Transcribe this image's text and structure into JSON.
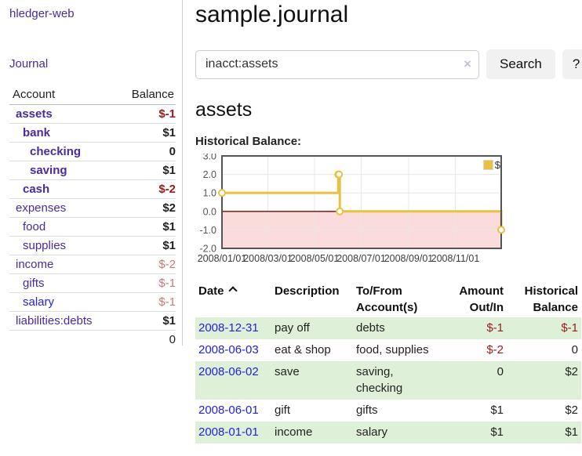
{
  "app": {
    "brand": "hledger-web",
    "nav_journal": "Journal"
  },
  "sidebar": {
    "accounts_header": {
      "account": "Account",
      "balance": "Balance"
    },
    "accounts": [
      {
        "name": "assets",
        "indent": 0,
        "bold": true,
        "balance": "$-1",
        "balance_class": "neg-strong"
      },
      {
        "name": "bank",
        "indent": 1,
        "bold": true,
        "balance": "$1",
        "balance_class": ""
      },
      {
        "name": "checking",
        "indent": 2,
        "bold": true,
        "balance": "0",
        "balance_class": ""
      },
      {
        "name": "saving",
        "indent": 2,
        "bold": true,
        "balance": "$1",
        "balance_class": ""
      },
      {
        "name": "cash",
        "indent": 1,
        "bold": true,
        "balance": "$-2",
        "balance_class": "neg-strong"
      },
      {
        "name": "expenses",
        "indent": 0,
        "bold": false,
        "balance": "$2",
        "balance_class": ""
      },
      {
        "name": "food",
        "indent": 1,
        "bold": false,
        "balance": "$1",
        "balance_class": ""
      },
      {
        "name": "supplies",
        "indent": 1,
        "bold": false,
        "balance": "$1",
        "balance_class": ""
      },
      {
        "name": "income",
        "indent": 0,
        "bold": false,
        "balance": "$-2",
        "balance_class": "neg-muted"
      },
      {
        "name": "gifts",
        "indent": 1,
        "bold": false,
        "balance": "$-1",
        "balance_class": "neg-muted"
      },
      {
        "name": "salary",
        "indent": 1,
        "bold": false,
        "balance": "$-1",
        "balance_class": "neg-muted",
        "link_class": "blue"
      },
      {
        "name": "liabilities:debts",
        "indent": 0,
        "bold": false,
        "balance": "$1",
        "balance_class": ""
      }
    ],
    "total": "0"
  },
  "header": {
    "title": "sample.journal"
  },
  "search": {
    "value": "inacct:assets",
    "clear_icon": "×",
    "button": "Search",
    "help_button": "?"
  },
  "account_page": {
    "title": "assets",
    "chart_label": "Historical Balance:"
  },
  "chart_data": {
    "type": "line",
    "step": true,
    "title": "Historical Balance",
    "legend": {
      "label": "$",
      "position": "top-right"
    },
    "y_ticks": [
      "3.0",
      "2.0",
      "1.0",
      "0.0",
      "-1.0",
      "-2.0"
    ],
    "ylim": [
      -2,
      3
    ],
    "x_ticks": [
      "2008/01/01",
      "2008/03/01",
      "2008/05/01",
      "2008/07/01",
      "2008/09/01",
      "2008/11/01"
    ],
    "xlim": [
      "2008/01/01",
      "2008/12/31"
    ],
    "grid": true,
    "points": [
      {
        "date": "2008-01-01",
        "value": 1
      },
      {
        "date": "2008-06-01",
        "value": 2
      },
      {
        "date": "2008-06-02",
        "value": 2
      },
      {
        "date": "2008-06-03",
        "value": 0
      },
      {
        "date": "2008-12-31",
        "value": -1
      }
    ],
    "colors": {
      "line": "#e9c044",
      "marker_fill": "#ffffff",
      "zero_line": "#8b0000",
      "negative_fill": "#fbdcdc",
      "grid": "#e7e7e7",
      "border": "#545454",
      "tick_text": "#545454",
      "x_tick_text": "#3b3b3b"
    }
  },
  "register": {
    "columns": [
      {
        "line1": "Date",
        "line2": "",
        "sort": "asc",
        "align": "left"
      },
      {
        "line1": "Description",
        "line2": "",
        "sort": "",
        "align": "left"
      },
      {
        "line1": "To/From",
        "line2": "Account(s)",
        "sort": "",
        "align": "left"
      },
      {
        "line1": "Amount",
        "line2": "Out/In",
        "sort": "",
        "align": "right"
      },
      {
        "line1": "Historical",
        "line2": "Balance",
        "sort": "",
        "align": "right"
      }
    ],
    "rows": [
      {
        "date": "2008-12-31",
        "description": "pay off",
        "accounts": "debts",
        "amount": "$-1",
        "balance": "$-1"
      },
      {
        "date": "2008-06-03",
        "description": "eat & shop",
        "accounts": "food, supplies",
        "amount": "$-2",
        "balance": "0"
      },
      {
        "date": "2008-06-02",
        "description": "save",
        "accounts": "saving, checking",
        "amount": "0",
        "balance": "$2"
      },
      {
        "date": "2008-06-01",
        "description": "gift",
        "accounts": "gifts",
        "amount": "$1",
        "balance": "$2"
      },
      {
        "date": "2008-01-01",
        "description": "income",
        "accounts": "salary",
        "amount": "$1",
        "balance": "$1"
      }
    ]
  }
}
